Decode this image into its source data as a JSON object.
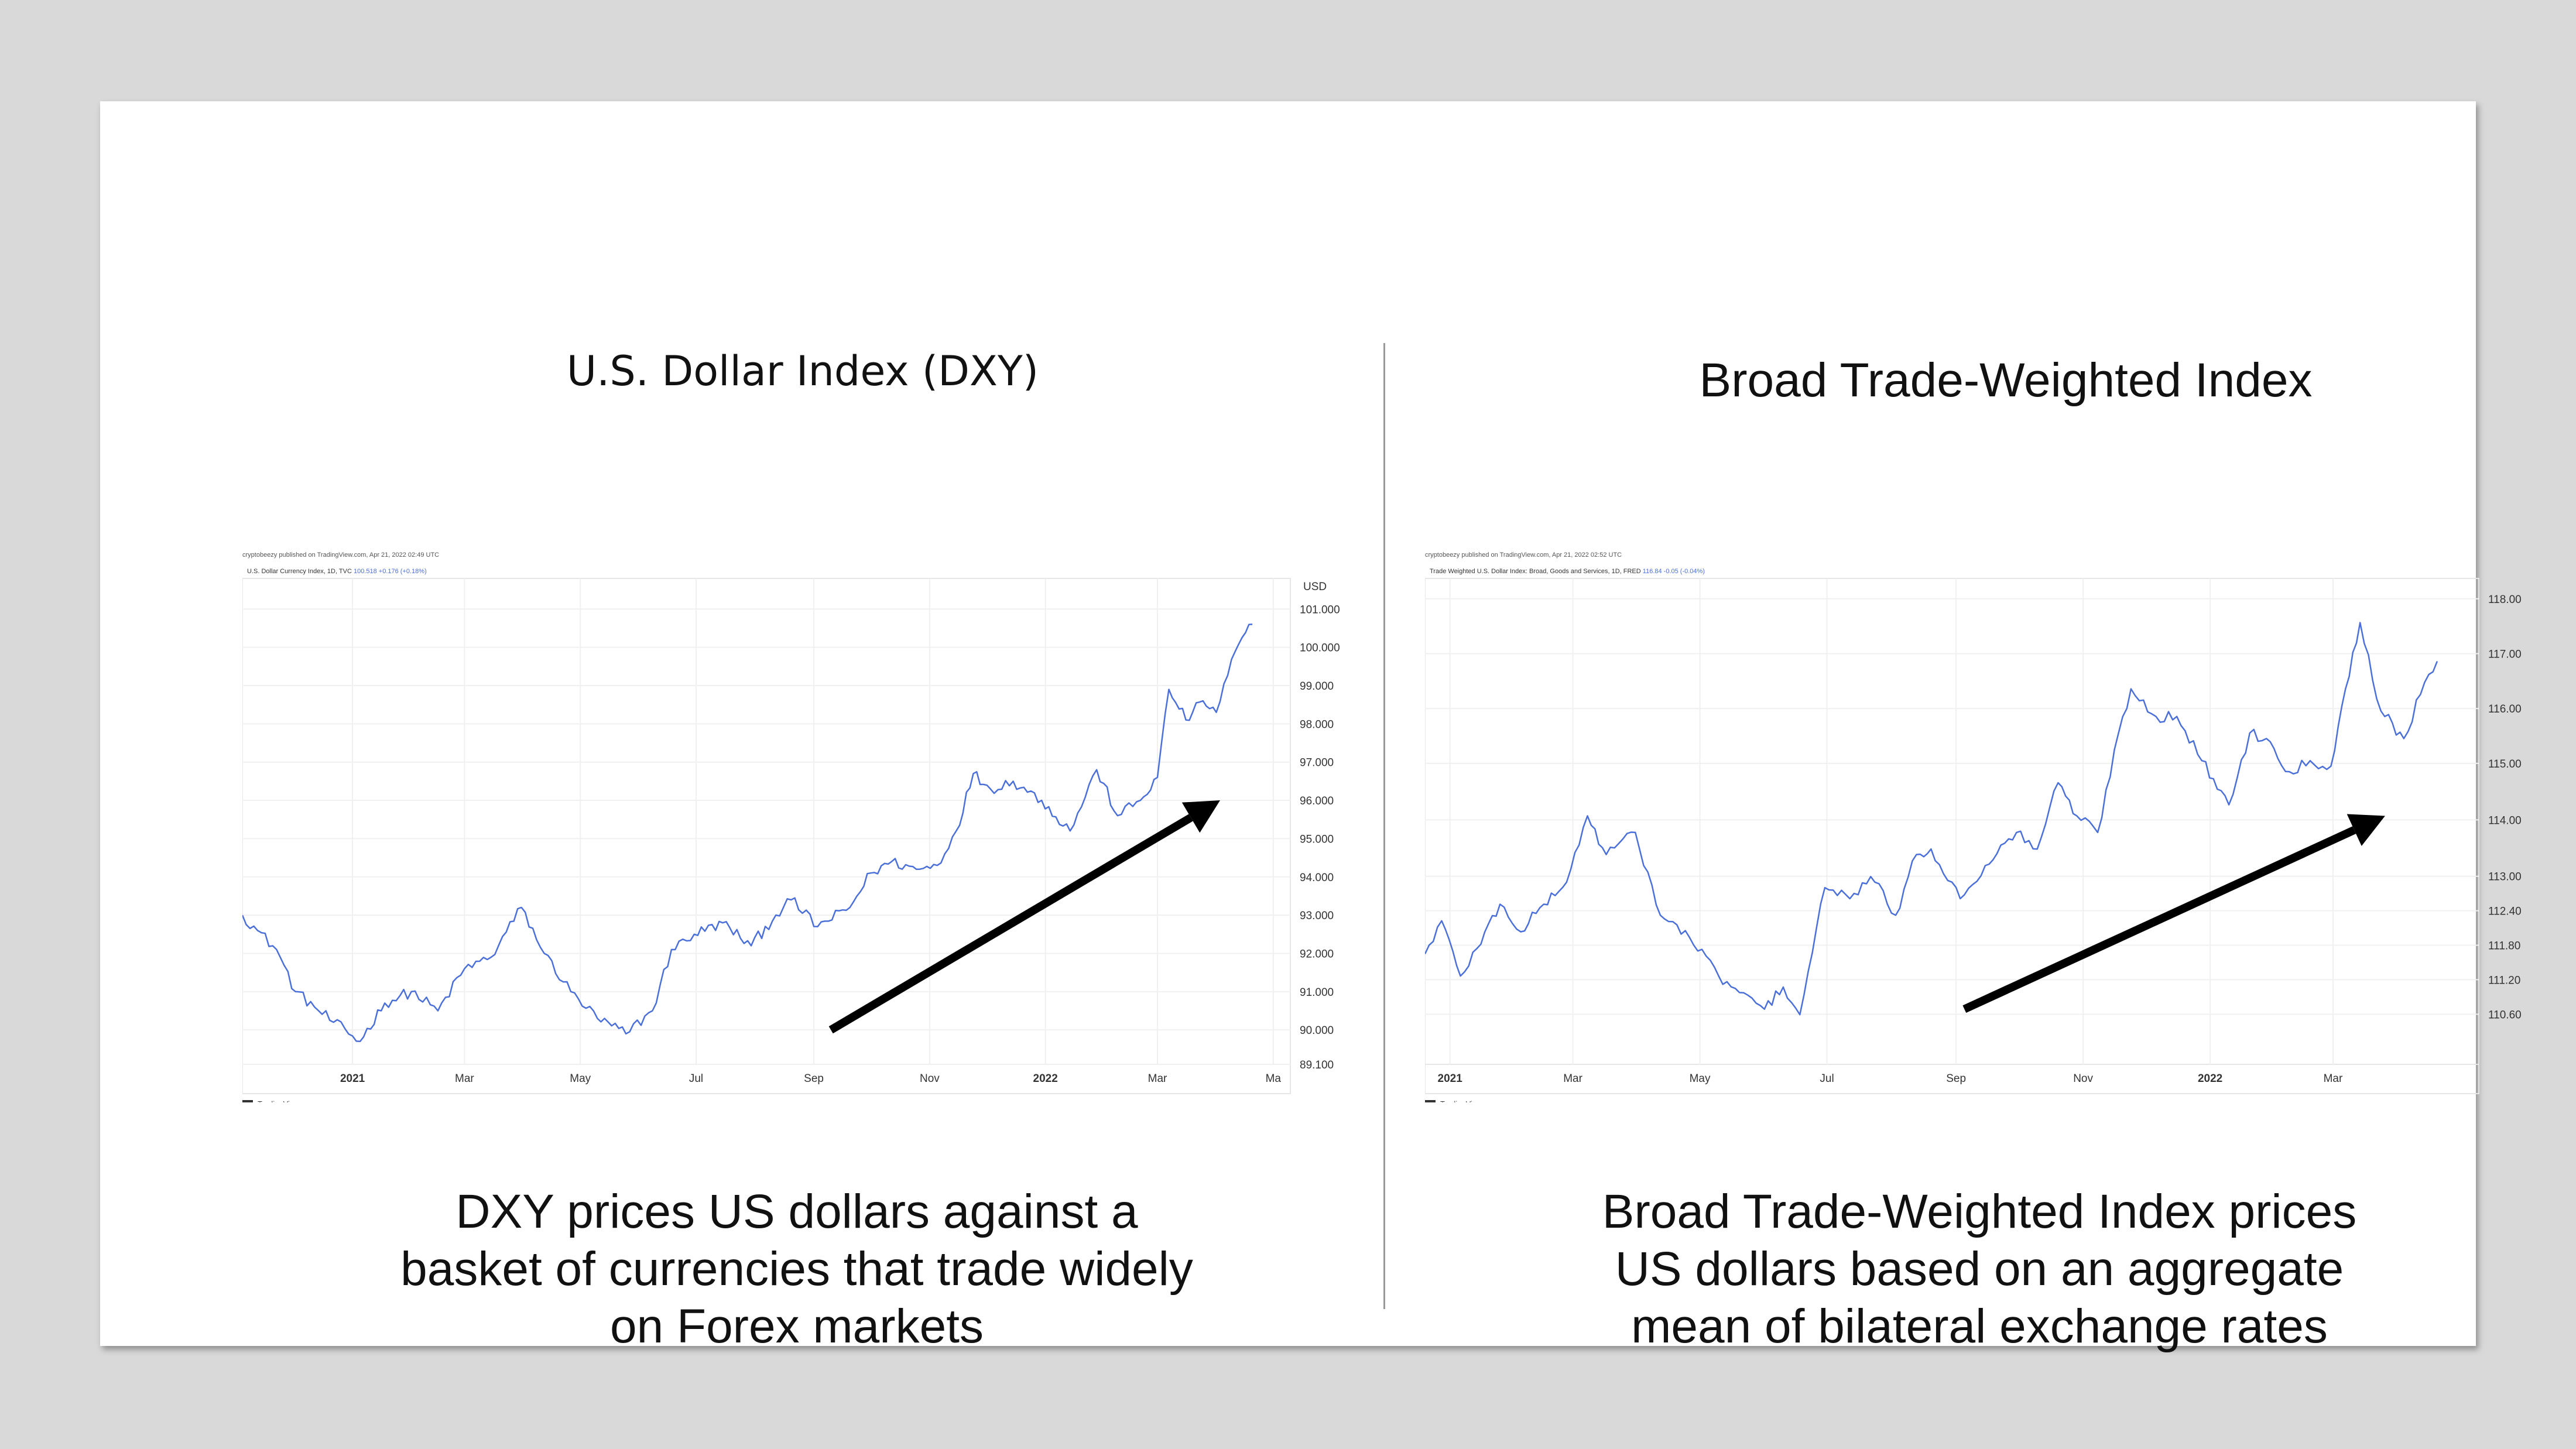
{
  "slide": {
    "left_title": "U.S. Dollar Index (DXY)",
    "right_title": "Broad Trade-Weighted Index",
    "left_caption": "DXY prices US dollars against a basket of currencies that trade widely on Forex markets",
    "right_caption": "Broad Trade-Weighted Index prices US dollars based on an aggregate mean of bilateral exchange rates"
  },
  "colors": {
    "line": "#4a6fd8",
    "arrow": "#000000",
    "grid": "#f0f0f0",
    "frame": "#e6e6e6"
  },
  "chart_data": [
    {
      "type": "line",
      "title": "",
      "publisher": "cryptobeezy published on TradingView.com, Apr 21, 2022 02:49 UTC",
      "legend": "U.S. Dollar Currency Index, 1D, TVC",
      "legend_value": "100.518",
      "legend_change": "+0.176 (+0.18%)",
      "currency_label": "USD",
      "watermark": "TradingView",
      "ylim": [
        89.1,
        101.8
      ],
      "y_ticks": [
        {
          "value": 101.0,
          "label": "101.000"
        },
        {
          "value": 100.0,
          "label": "100.000"
        },
        {
          "value": 99.0,
          "label": "99.000"
        },
        {
          "value": 98.0,
          "label": "98.000"
        },
        {
          "value": 97.0,
          "label": "97.000"
        },
        {
          "value": 96.0,
          "label": "96.000"
        },
        {
          "value": 95.0,
          "label": "95.000"
        },
        {
          "value": 94.0,
          "label": "94.000"
        },
        {
          "value": 93.0,
          "label": "93.000"
        },
        {
          "value": 92.0,
          "label": "92.000"
        },
        {
          "value": 91.0,
          "label": "91.000"
        },
        {
          "value": 90.0,
          "label": "90.000"
        },
        {
          "value": 89.1,
          "label": "89.100"
        }
      ],
      "x_ticks": [
        {
          "label": "2021",
          "date": "2021-01-01",
          "bold": true
        },
        {
          "label": "Mar",
          "date": "2021-03-01"
        },
        {
          "label": "May",
          "date": "2021-05-01"
        },
        {
          "label": "Jul",
          "date": "2021-07-01"
        },
        {
          "label": "Sep",
          "date": "2021-09-01"
        },
        {
          "label": "Nov",
          "date": "2021-11-01"
        },
        {
          "label": "2022",
          "date": "2022-01-01",
          "bold": true
        },
        {
          "label": "Mar",
          "date": "2022-03-01"
        },
        {
          "label": "Ma",
          "date": "2022-05-01"
        }
      ],
      "xlim": [
        "2020-11-04",
        "2022-05-10"
      ],
      "series": [
        {
          "x": [
            "2020-11-04",
            "2020-11-12",
            "2020-11-22",
            "2020-12-02",
            "2020-12-12",
            "2020-12-22",
            "2021-01-05",
            "2021-01-18",
            "2021-02-01",
            "2021-02-15",
            "2021-03-01",
            "2021-03-15",
            "2021-03-31",
            "2021-04-12",
            "2021-04-26",
            "2021-05-10",
            "2021-05-25",
            "2021-06-08",
            "2021-06-18",
            "2021-06-30",
            "2021-07-15",
            "2021-07-30",
            "2021-08-12",
            "2021-08-20",
            "2021-09-03",
            "2021-09-20",
            "2021-10-01",
            "2021-10-12",
            "2021-10-25",
            "2021-11-05",
            "2021-11-15",
            "2021-11-24",
            "2021-12-03",
            "2021-12-15",
            "2021-12-30",
            "2022-01-14",
            "2022-01-28",
            "2022-02-08",
            "2022-02-20",
            "2022-03-01",
            "2022-03-07",
            "2022-03-16",
            "2022-03-25",
            "2022-04-01",
            "2022-04-11",
            "2022-04-20"
          ],
          "y": [
            93.0,
            92.6,
            92.1,
            91.0,
            90.6,
            90.2,
            89.7,
            90.7,
            91.0,
            90.5,
            91.6,
            91.9,
            93.2,
            92.0,
            91.0,
            90.3,
            89.9,
            90.5,
            92.1,
            92.5,
            92.8,
            92.2,
            93.0,
            93.4,
            92.7,
            93.2,
            94.1,
            94.4,
            94.2,
            94.3,
            95.2,
            96.7,
            96.3,
            96.5,
            96.0,
            95.2,
            96.8,
            95.6,
            96.0,
            96.6,
            98.9,
            98.1,
            98.6,
            98.3,
            99.9,
            100.6
          ]
        }
      ],
      "annotation_arrow": {
        "from": [
          "2021-09-10",
          90.0
        ],
        "to": [
          "2022-04-03",
          96.0
        ]
      }
    },
    {
      "type": "line",
      "title": "",
      "publisher": "cryptobeezy published on TradingView.com, Apr 21, 2022 02:52 UTC",
      "legend": "Trade Weighted U.S. Dollar Index: Broad, Goods and Services, 1D, FRED",
      "legend_value": "116.84",
      "legend_change": "-0.05 (-0.04%)",
      "watermark": "TradingView",
      "ylim": [
        109.6,
        118.4
      ],
      "y_ticks": [
        {
          "value": 118.0,
          "label": "118.00",
          "py": 295
        },
        {
          "value": 117.0,
          "label": "117.00",
          "py": 330
        },
        {
          "value": 116.0,
          "label": "116.00",
          "py": 365
        },
        {
          "value": 115.0,
          "label": "115.00",
          "py": 400
        },
        {
          "value": 114.0,
          "label": "114.00",
          "py": 436
        },
        {
          "value": 113.0,
          "label": "113.00",
          "py": 472
        },
        {
          "value": 112.4,
          "label": "112.40",
          "py": 494
        },
        {
          "value": 111.8,
          "label": "111.80",
          "py": 516
        },
        {
          "value": 111.2,
          "label": "111.20",
          "py": 538
        },
        {
          "value": 110.6,
          "label": "110.60",
          "py": 560
        }
      ],
      "x_ticks": [
        {
          "label": "2021",
          "date": "2021-01-01",
          "bold": true
        },
        {
          "label": "Mar",
          "date": "2021-03-01"
        },
        {
          "label": "May",
          "date": "2021-05-01"
        },
        {
          "label": "Jul",
          "date": "2021-07-01"
        },
        {
          "label": "Sep",
          "date": "2021-09-01"
        },
        {
          "label": "Nov",
          "date": "2021-11-01"
        },
        {
          "label": "2022",
          "date": "2022-01-01",
          "bold": true
        },
        {
          "label": "Mar",
          "date": "2022-03-01"
        }
      ],
      "xlim": [
        "2020-12-20",
        "2022-05-10"
      ],
      "series": [
        {
          "x": [
            "2020-12-20",
            "2020-12-28",
            "2021-01-06",
            "2021-01-14",
            "2021-01-25",
            "2021-02-04",
            "2021-02-15",
            "2021-02-26",
            "2021-03-08",
            "2021-03-17",
            "2021-03-31",
            "2021-04-12",
            "2021-04-26",
            "2021-05-10",
            "2021-05-20",
            "2021-06-01",
            "2021-06-10",
            "2021-06-18",
            "2021-06-30",
            "2021-07-12",
            "2021-07-22",
            "2021-08-03",
            "2021-08-13",
            "2021-08-20",
            "2021-09-03",
            "2021-09-15",
            "2021-09-30",
            "2021-10-10",
            "2021-10-20",
            "2021-10-29",
            "2021-11-08",
            "2021-11-18",
            "2021-11-24",
            "2021-12-06",
            "2021-12-16",
            "2021-12-28",
            "2022-01-10",
            "2022-01-20",
            "2022-01-28",
            "2022-02-08",
            "2022-02-18",
            "2022-02-28",
            "2022-03-07",
            "2022-03-14",
            "2022-03-24",
            "2022-04-04",
            "2022-04-12",
            "2022-04-20"
          ],
          "y": [
            111.6,
            112.2,
            111.2,
            111.7,
            112.5,
            112.0,
            112.5,
            112.9,
            114.1,
            113.4,
            113.8,
            112.3,
            111.9,
            111.2,
            110.9,
            110.6,
            111.0,
            110.5,
            112.8,
            112.6,
            113.0,
            112.3,
            113.4,
            113.5,
            112.6,
            113.2,
            113.8,
            113.5,
            114.7,
            114.1,
            113.8,
            115.6,
            116.4,
            115.9,
            115.9,
            115.1,
            114.3,
            115.6,
            115.5,
            114.9,
            115.1,
            115.0,
            116.4,
            117.6,
            116.0,
            115.5,
            116.3,
            116.9
          ]
        }
      ],
      "annotation_arrow": {
        "from": [
          "2021-09-05",
          110.6
        ],
        "to": [
          "2022-03-26",
          114.1
        ]
      }
    }
  ]
}
